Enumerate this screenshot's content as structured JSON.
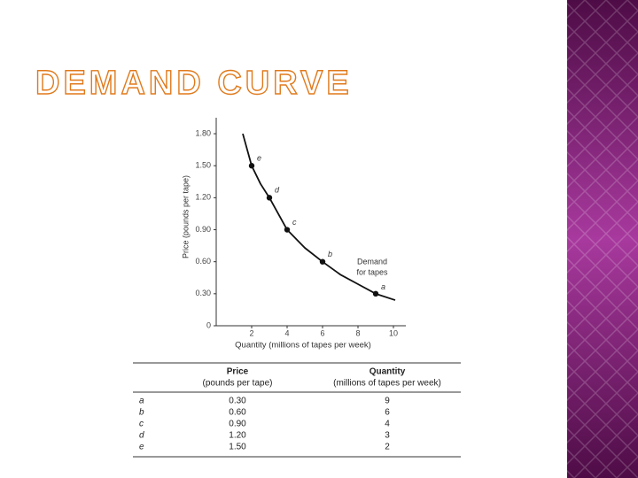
{
  "slide": {
    "title": "DEMAND CURVE"
  },
  "chart_data": {
    "type": "line",
    "y_label": "Price (pounds per tape)",
    "x_label": "Quantity (millions of tapes per week)",
    "annotation": [
      "Demand",
      "for tapes"
    ],
    "xlim": [
      0,
      10.5
    ],
    "ylim": [
      0,
      1.9
    ],
    "xticks": [
      2,
      4,
      6,
      8,
      10
    ],
    "yticks": [
      0,
      {
        "value": 0.3,
        "label": "0.30"
      },
      {
        "value": 0.6,
        "label": "0.60"
      },
      {
        "value": 0.9,
        "label": "0.90"
      },
      {
        "value": 1.2,
        "label": "1.20"
      },
      {
        "value": 1.5,
        "label": "1.50"
      },
      {
        "value": 1.8,
        "label": "1.80"
      }
    ],
    "series": [
      {
        "name": "curve",
        "color": "#111111",
        "x": [
          1.5,
          2,
          2.5,
          3,
          4,
          5,
          6,
          7,
          8,
          9,
          10.1
        ],
        "values": [
          1.8,
          1.5,
          1.33,
          1.2,
          0.9,
          0.73,
          0.6,
          0.48,
          0.39,
          0.3,
          0.24
        ]
      },
      {
        "name": "points",
        "color": "#111111",
        "x": [
          9,
          6,
          4,
          3,
          2
        ],
        "values": [
          0.3,
          0.6,
          0.9,
          1.2,
          1.5
        ],
        "point_labels": [
          "a",
          "b",
          "c",
          "d",
          "e"
        ]
      }
    ]
  },
  "table": {
    "headers": [
      [
        "Price",
        "(pounds per tape)"
      ],
      [
        "Quantity",
        "(millions of tapes per week)"
      ]
    ],
    "rows": [
      [
        "a",
        "0.30",
        "9"
      ],
      [
        "b",
        "0.60",
        "6"
      ],
      [
        "c",
        "0.90",
        "4"
      ],
      [
        "d",
        "1.20",
        "3"
      ],
      [
        "e",
        "1.50",
        "2"
      ]
    ]
  }
}
